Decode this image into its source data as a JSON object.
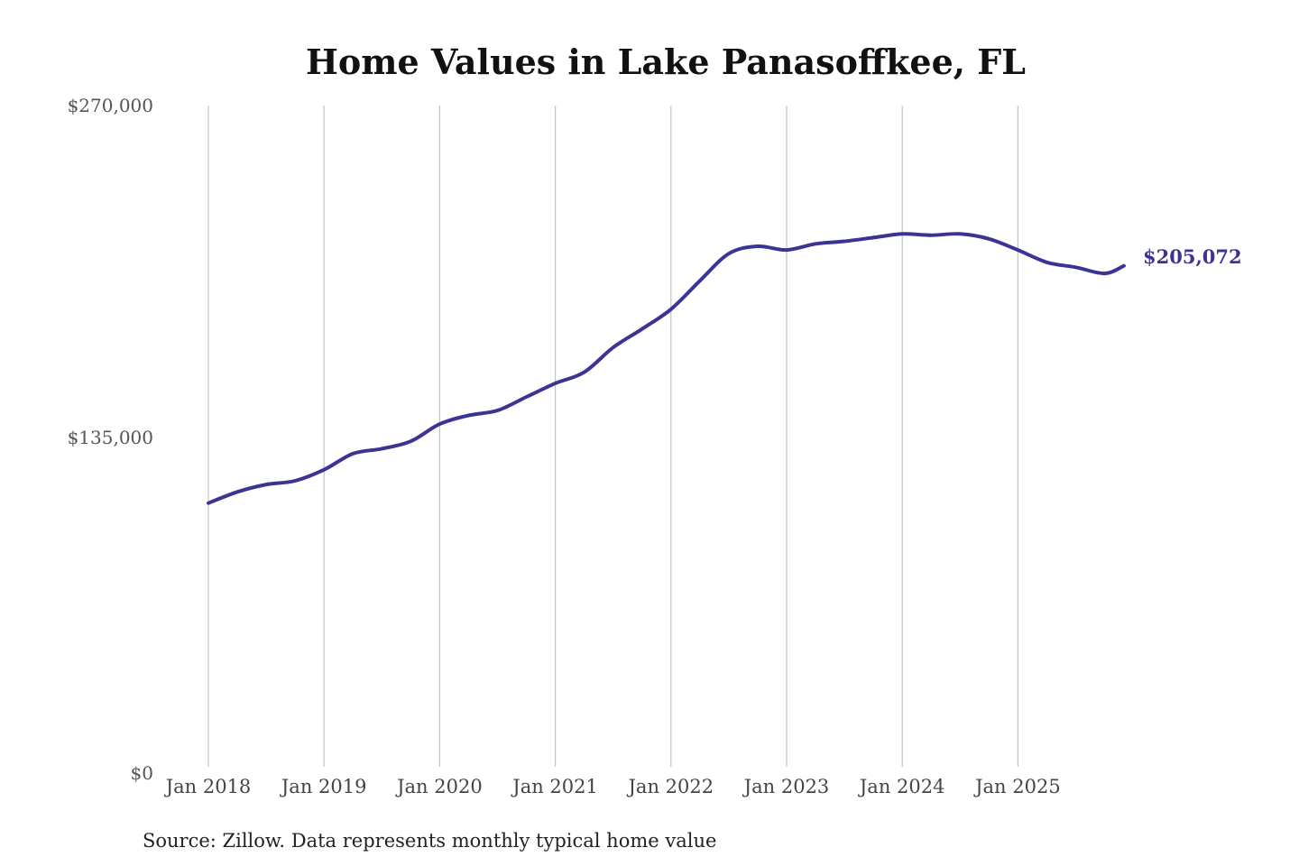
{
  "chart_data": {
    "type": "line",
    "title": "Home Values in Lake Panasoffkee, FL",
    "xlabel": "",
    "ylabel": "",
    "ylim": [
      0,
      270000
    ],
    "ytick_labels": [
      "$0",
      "$135,000",
      "$270,000"
    ],
    "ytick_values": [
      0,
      135000,
      270000
    ],
    "xtick_labels": [
      "Jan 2018",
      "Jan 2019",
      "Jan 2020",
      "Jan 2021",
      "Jan 2022",
      "Jan 2023",
      "Jan 2024",
      "Jan 2025"
    ],
    "xtick_values": [
      "2018-01",
      "2019-01",
      "2020-01",
      "2021-01",
      "2022-01",
      "2023-01",
      "2024-01",
      "2025-01"
    ],
    "grid": "vertical",
    "line_color": "#3b3494",
    "end_label": "$205,072",
    "source": "Source: Zillow. Data represents monthly typical home value",
    "series": [
      {
        "x": [
          "2018-01",
          "2018-04",
          "2018-07",
          "2018-10",
          "2019-01",
          "2019-04",
          "2019-07",
          "2019-10",
          "2020-01",
          "2020-04",
          "2020-07",
          "2020-10",
          "2021-01",
          "2021-04",
          "2021-07",
          "2021-10",
          "2022-01",
          "2022-04",
          "2022-07",
          "2022-10",
          "2023-01",
          "2023-04",
          "2023-07",
          "2023-10",
          "2024-01",
          "2024-04",
          "2024-07",
          "2024-10",
          "2025-01",
          "2025-04",
          "2025-07",
          "2025-10",
          "2025-12"
        ],
        "values": [
          109000,
          113500,
          116500,
          118000,
          122500,
          129000,
          131000,
          134000,
          141000,
          144500,
          146500,
          152000,
          157500,
          162000,
          172000,
          179500,
          187500,
          199000,
          210000,
          213000,
          211500,
          214000,
          215000,
          216500,
          218000,
          217500,
          218000,
          216000,
          211500,
          206500,
          204500,
          202000,
          205072
        ]
      }
    ]
  }
}
